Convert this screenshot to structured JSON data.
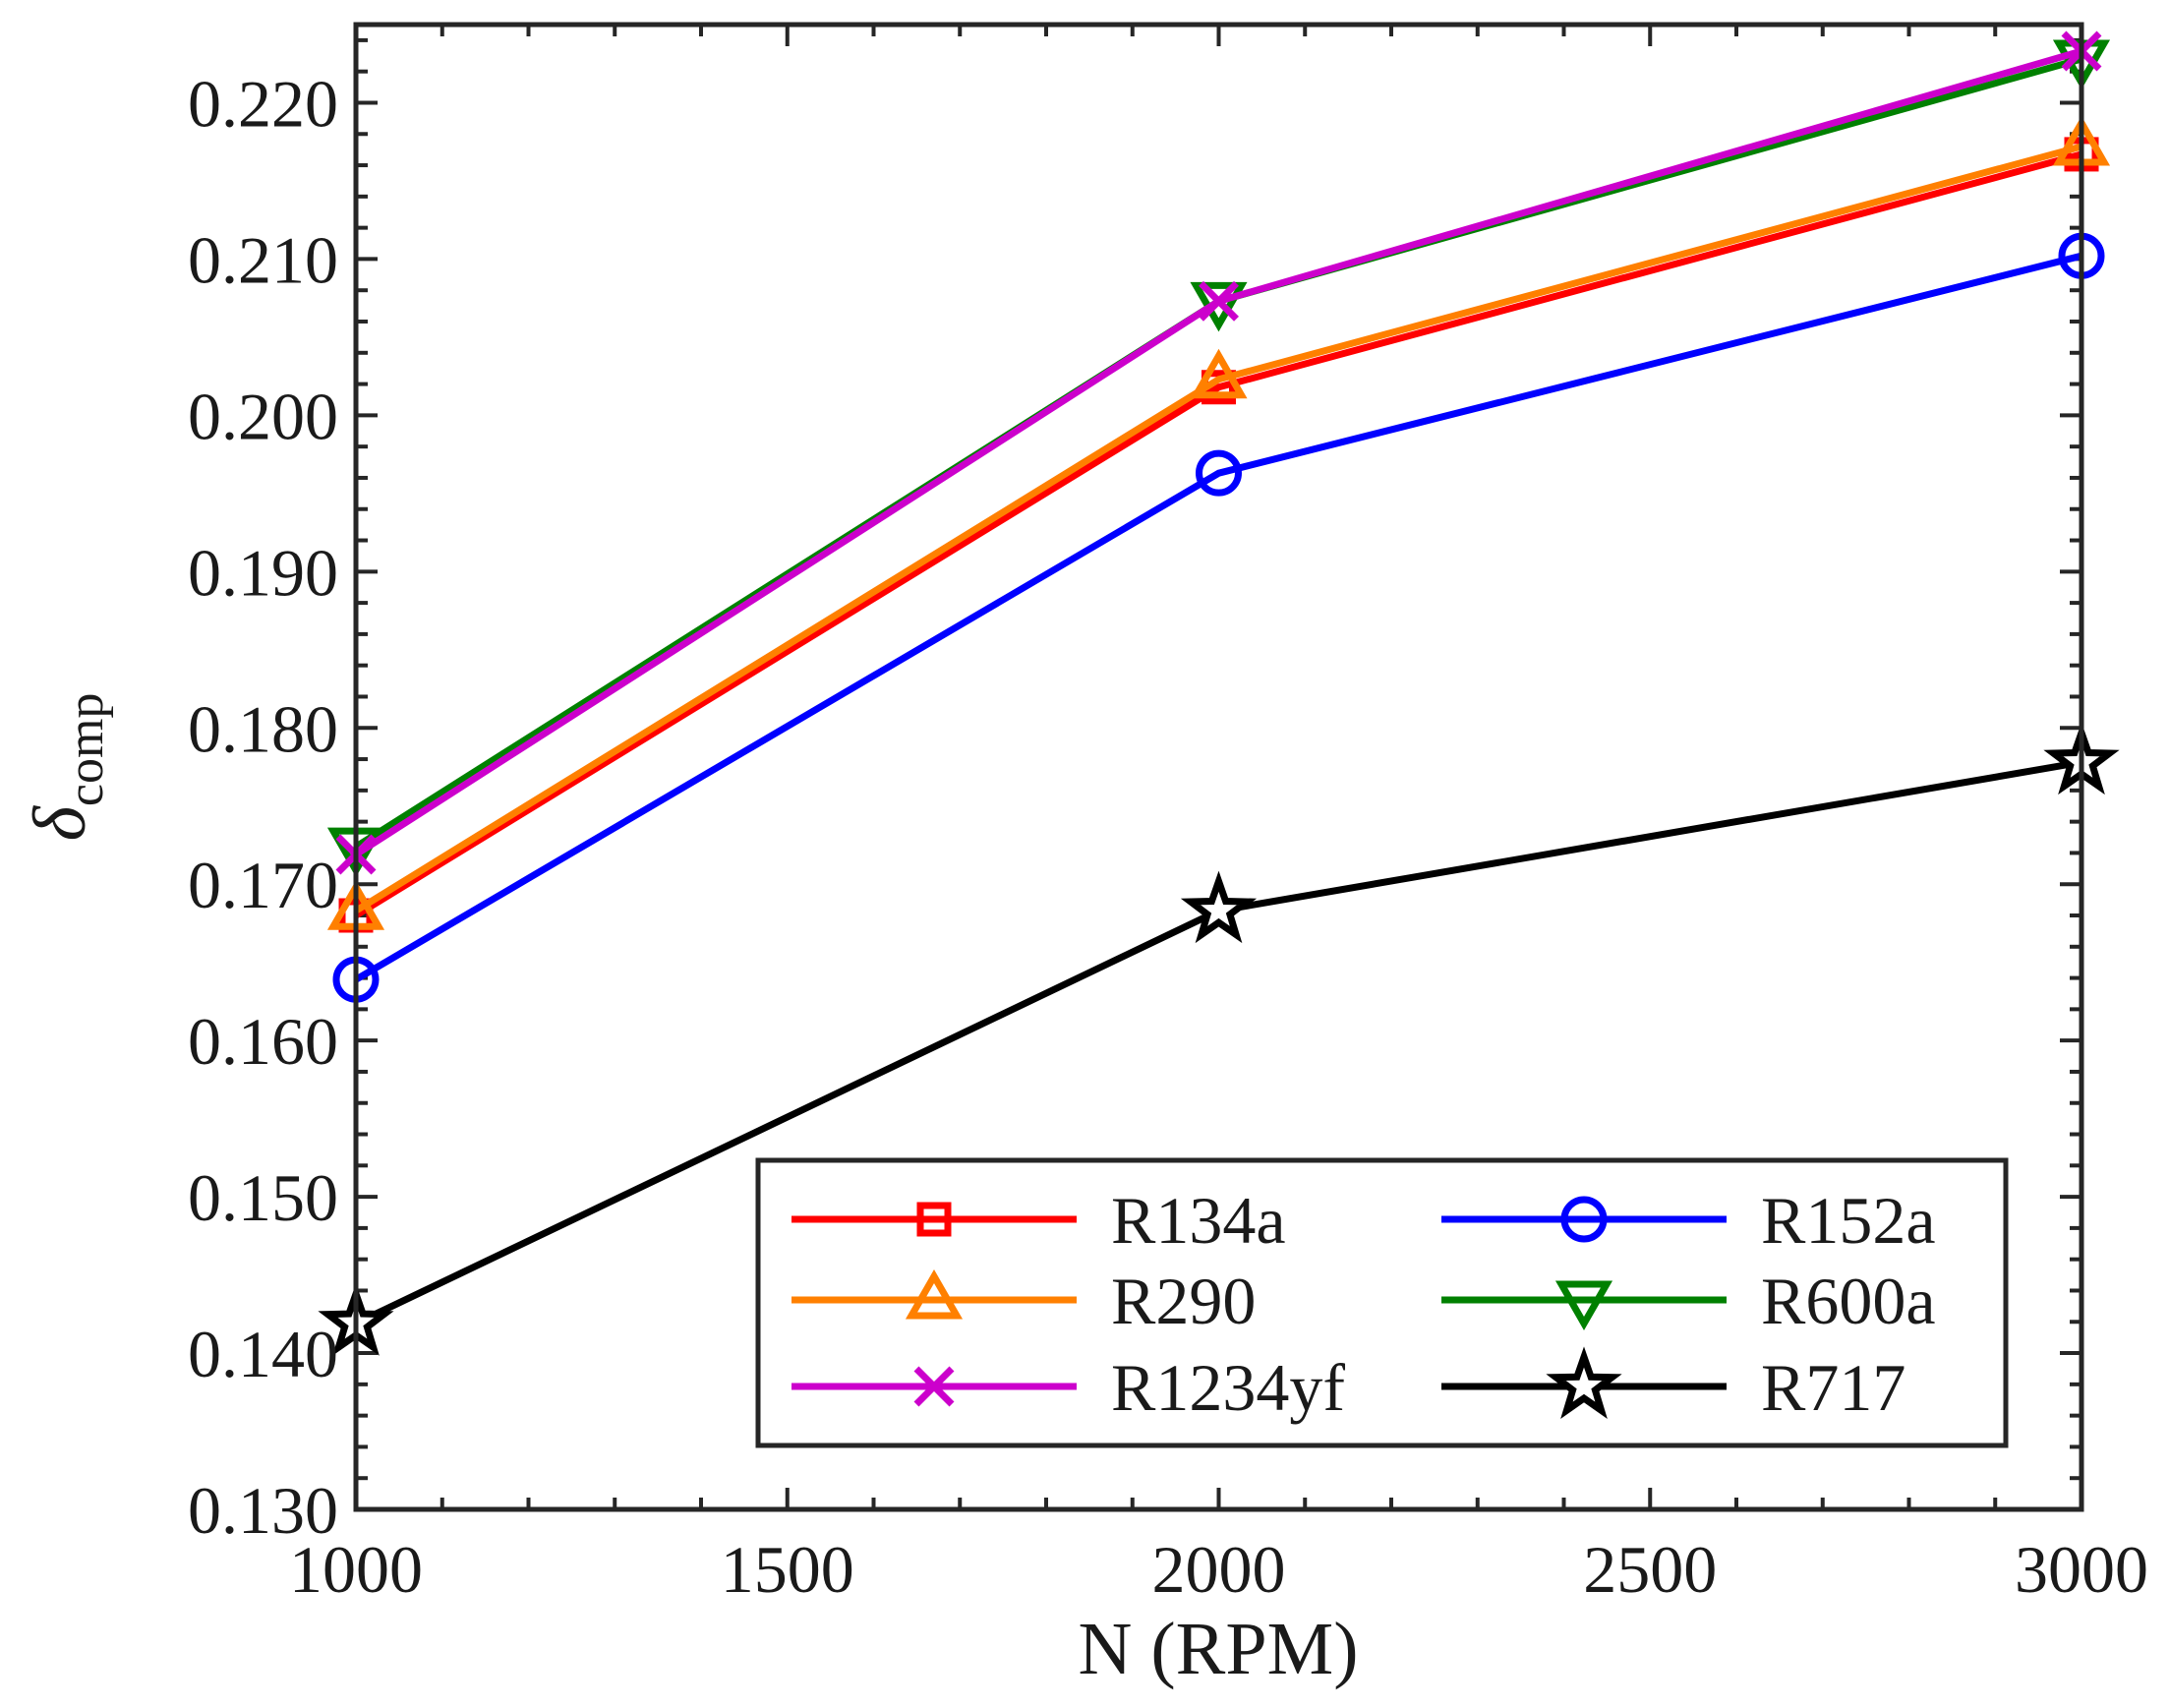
{
  "chart_data": {
    "type": "line",
    "title": "",
    "xlabel": "N (RPM)",
    "ylabel": {
      "main": "δ",
      "sub": "comp"
    },
    "x": [
      1000,
      2000,
      3000
    ],
    "xlim": [
      1000,
      3000
    ],
    "ylim": [
      0.13,
      0.225
    ],
    "xticks": [
      1000,
      1500,
      2000,
      2500,
      3000
    ],
    "xtick_labels": [
      "1000",
      "1500",
      "2000",
      "2500",
      "3000"
    ],
    "yticks": [
      0.13,
      0.14,
      0.15,
      0.16,
      0.17,
      0.18,
      0.19,
      0.2,
      0.21,
      0.22
    ],
    "ytick_labels": [
      "0.130",
      "0.140",
      "0.150",
      "0.160",
      "0.170",
      "0.180",
      "0.190",
      "0.200",
      "0.210",
      "0.220"
    ],
    "grid": false,
    "legend_position": "bottom-right",
    "series": [
      {
        "name": "R134a",
        "color": "#ff0000",
        "marker": "square",
        "values": [
          0.168,
          0.2018,
          0.2167
        ]
      },
      {
        "name": "R152a",
        "color": "#0000ff",
        "marker": "circle",
        "values": [
          0.1639,
          0.1963,
          0.2102
        ]
      },
      {
        "name": "R290",
        "color": "#ff8000",
        "marker": "triangle-up",
        "values": [
          0.1683,
          0.2023,
          0.2172
        ]
      },
      {
        "name": "R600a",
        "color": "#008000",
        "marker": "triangle-down",
        "values": [
          0.1724,
          0.2073,
          0.2228
        ]
      },
      {
        "name": "R1234yf",
        "color": "#cc00cc",
        "marker": "x",
        "values": [
          0.1719,
          0.2073,
          0.2233
        ]
      },
      {
        "name": "R717",
        "color": "#000000",
        "marker": "star",
        "values": [
          0.1419,
          0.1683,
          0.1778
        ]
      }
    ]
  }
}
